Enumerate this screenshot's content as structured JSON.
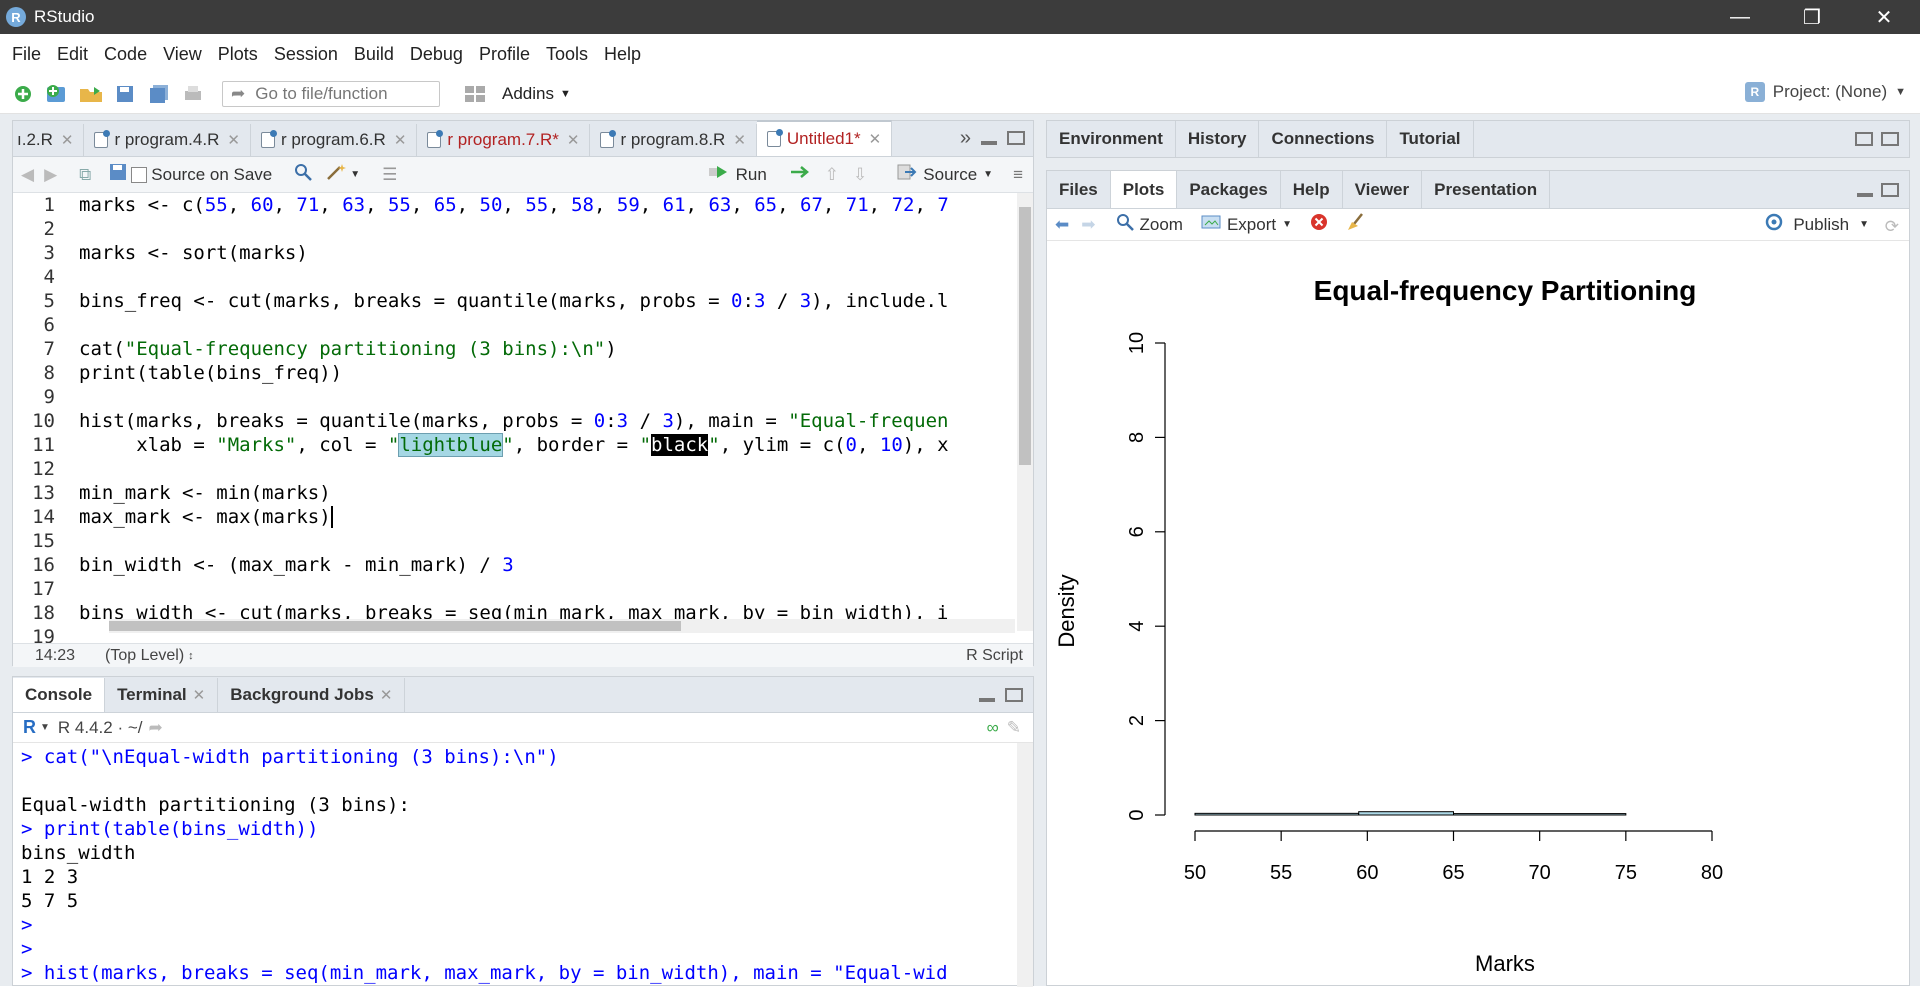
{
  "window": {
    "title": "RStudio"
  },
  "menu": [
    "File",
    "Edit",
    "Code",
    "View",
    "Plots",
    "Session",
    "Build",
    "Debug",
    "Profile",
    "Tools",
    "Help"
  ],
  "toolbar": {
    "goto_placeholder": "Go to file/function",
    "addins": "Addins",
    "project": "Project: (None)"
  },
  "editor": {
    "tabs": [
      {
        "label": "ı.2.R",
        "modified": false,
        "active": false
      },
      {
        "label": "r program.4.R",
        "modified": false,
        "active": false
      },
      {
        "label": "r program.6.R",
        "modified": false,
        "active": false
      },
      {
        "label": "r program.7.R*",
        "modified": true,
        "active": false
      },
      {
        "label": "r program.8.R",
        "modified": false,
        "active": false
      },
      {
        "label": "Untitled1*",
        "modified": true,
        "active": true
      }
    ],
    "source_on_save": "Source on Save",
    "run": "Run",
    "source": "Source",
    "status_pos": "14:23",
    "status_level": "(Top Level)",
    "status_type": "R Script",
    "lines": [
      {
        "n": "1",
        "t": "marks <- c(55, 60, 71, 63, 55, 65, 50, 55, 58, 59, 61, 63, 65, 67, 71, 72, 7"
      },
      {
        "n": "2",
        "t": ""
      },
      {
        "n": "3",
        "t": "marks <- sort(marks)"
      },
      {
        "n": "4",
        "t": ""
      },
      {
        "n": "5",
        "t": "bins_freq <- cut(marks, breaks = quantile(marks, probs = 0:3 / 3), include.l"
      },
      {
        "n": "6",
        "t": ""
      },
      {
        "n": "7",
        "t": "cat(\"Equal-frequency partitioning (3 bins):\\n\")"
      },
      {
        "n": "8",
        "t": "print(table(bins_freq))"
      },
      {
        "n": "9",
        "t": ""
      },
      {
        "n": "10",
        "t": "hist(marks, breaks = quantile(marks, probs = 0:3 / 3), main = \"Equal-frequen"
      },
      {
        "n": "11",
        "t": "     xlab = \"Marks\", col = \"lightblue\", border = \"black\", ylim = c(0, 10), x"
      },
      {
        "n": "12",
        "t": ""
      },
      {
        "n": "13",
        "t": "min_mark <- min(marks)"
      },
      {
        "n": "14",
        "t": "max_mark <- max(marks)"
      },
      {
        "n": "15",
        "t": ""
      },
      {
        "n": "16",
        "t": "bin_width <- (max_mark - min_mark) / 3"
      },
      {
        "n": "17",
        "t": ""
      },
      {
        "n": "18",
        "t": "bins_width <- cut(marks, breaks = seq(min_mark, max_mark, by = bin_width), i"
      },
      {
        "n": "19",
        "t": ""
      }
    ]
  },
  "console": {
    "tabs": [
      "Console",
      "Terminal",
      "Background Jobs"
    ],
    "version": "R 4.4.2 · ~/",
    "lines": [
      {
        "type": "in",
        "t": "> cat(\"\\nEqual-width partitioning (3 bins):\\n\")"
      },
      {
        "type": "out",
        "t": ""
      },
      {
        "type": "out",
        "t": "Equal-width partitioning (3 bins):"
      },
      {
        "type": "in",
        "t": "> print(table(bins_width))"
      },
      {
        "type": "out",
        "t": "bins_width"
      },
      {
        "type": "out",
        "t": "1 2 3"
      },
      {
        "type": "out",
        "t": "5 7 5"
      },
      {
        "type": "in",
        "t": ">"
      },
      {
        "type": "in",
        "t": ">"
      },
      {
        "type": "in",
        "t": "> hist(marks, breaks = seq(min_mark, max_mark, by = bin_width), main = \"Equal-wid"
      }
    ]
  },
  "env_tabs": [
    "Environment",
    "History",
    "Connections",
    "Tutorial"
  ],
  "files_tabs": [
    "Files",
    "Plots",
    "Packages",
    "Help",
    "Viewer",
    "Presentation"
  ],
  "plot_toolbar": {
    "zoom": "Zoom",
    "export": "Export",
    "publish": "Publish"
  },
  "chart_data": {
    "type": "bar",
    "title": "Equal-frequency Partitioning",
    "xlabel": "Marks",
    "ylabel": "Density",
    "xlim": [
      50,
      80
    ],
    "ylim": [
      0,
      10
    ],
    "x_ticks": [
      "50",
      "55",
      "60",
      "65",
      "70",
      "75",
      "80"
    ],
    "y_ticks": [
      "0",
      "2",
      "4",
      "6",
      "8",
      "10"
    ],
    "bins": [
      {
        "from": 50,
        "to": 59.5,
        "value": 0.035
      },
      {
        "from": 59.5,
        "to": 65,
        "value": 0.07
      },
      {
        "from": 65,
        "to": 75,
        "value": 0.03
      }
    ],
    "fill": "#add8e6",
    "border": "#000000"
  }
}
